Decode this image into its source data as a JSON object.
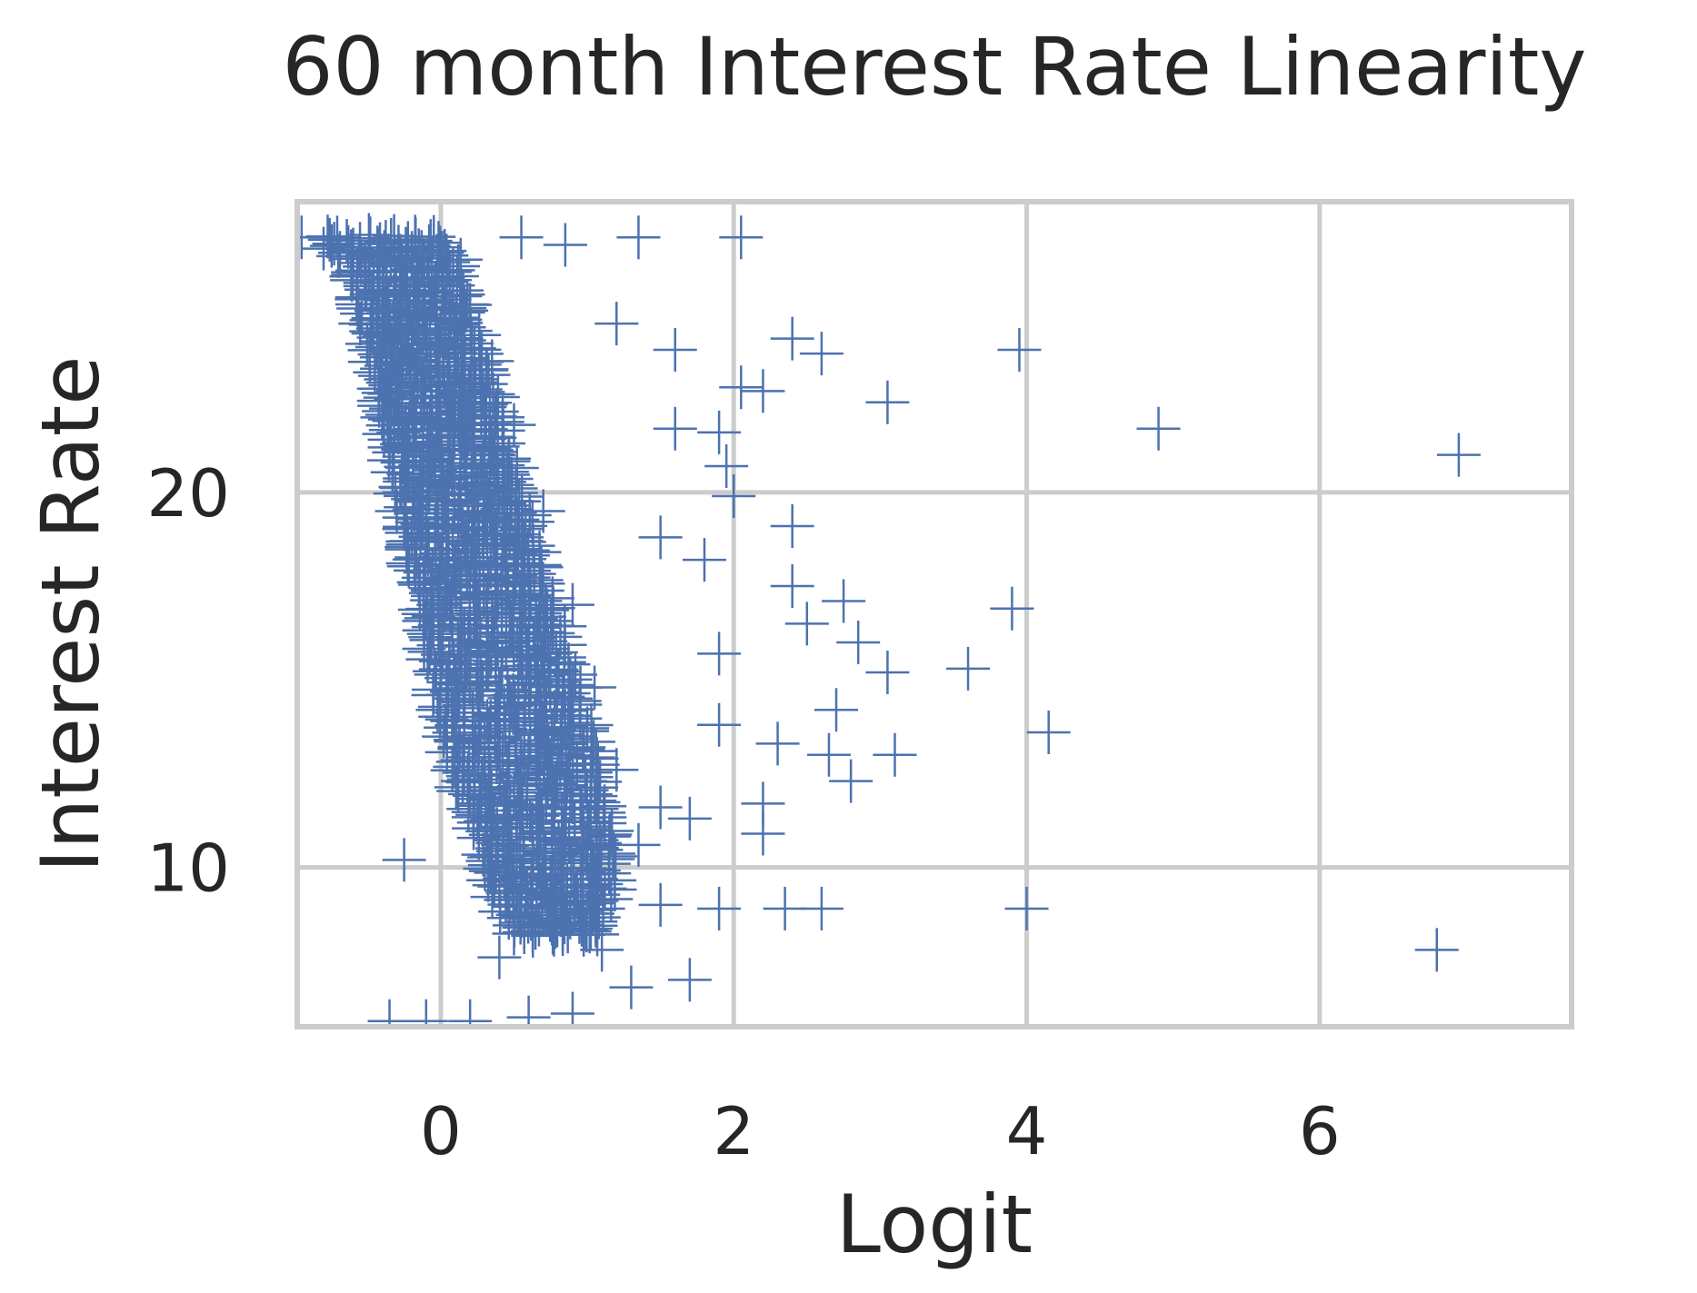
{
  "chart_data": {
    "type": "scatter",
    "title": "60 month Interest Rate Linearity",
    "xlabel": "Logit",
    "ylabel": "Interest Rate",
    "xlim": [
      -0.98,
      7.72
    ],
    "ylim": [
      5.75,
      27.75
    ],
    "xticks": [
      0,
      2,
      4,
      6
    ],
    "yticks": [
      10,
      20
    ],
    "grid": true,
    "marker": "+",
    "colors": {
      "marker": "#4c72b0",
      "grid": "#cccccc",
      "text": "#262626"
    },
    "series": [
      {
        "marker": "plus",
        "bulk_band_rows": [
          [
            26.8,
            -0.85,
            0.0
          ],
          [
            26.2,
            -0.65,
            0.15
          ],
          [
            25.5,
            -0.6,
            0.15
          ],
          [
            24.5,
            -0.55,
            0.25
          ],
          [
            23.5,
            -0.5,
            0.3
          ],
          [
            22.5,
            -0.45,
            0.4
          ],
          [
            21.5,
            -0.4,
            0.45
          ],
          [
            20.5,
            -0.35,
            0.55
          ],
          [
            19.5,
            -0.3,
            0.6
          ],
          [
            18.5,
            -0.25,
            0.7
          ],
          [
            17.5,
            -0.2,
            0.75
          ],
          [
            16.5,
            -0.15,
            0.85
          ],
          [
            15.5,
            -0.1,
            0.9
          ],
          [
            14.5,
            -0.05,
            1.0
          ],
          [
            13.5,
            0.0,
            1.05
          ],
          [
            12.5,
            0.05,
            1.1
          ],
          [
            11.5,
            0.15,
            1.15
          ],
          [
            10.5,
            0.25,
            1.2
          ],
          [
            9.5,
            0.3,
            1.2
          ],
          [
            8.8,
            0.4,
            1.15
          ],
          [
            8.2,
            0.5,
            1.1
          ]
        ],
        "points": [
          [
            -0.95,
            26.8
          ],
          [
            -0.8,
            26.5
          ],
          [
            -0.7,
            26.3
          ],
          [
            -0.6,
            25.8
          ],
          [
            -0.55,
            24.5
          ],
          [
            -0.45,
            23.2
          ],
          [
            -0.4,
            22.0
          ],
          [
            -0.35,
            21.2
          ],
          [
            -0.25,
            20.0
          ],
          [
            -0.3,
            19.5
          ],
          [
            -0.2,
            18.7
          ],
          [
            -0.15,
            17.6
          ],
          [
            -0.05,
            16.7
          ],
          [
            0.0,
            15.5
          ],
          [
            0.05,
            14.6
          ],
          [
            0.1,
            13.4
          ],
          [
            0.15,
            12.3
          ],
          [
            0.25,
            11.4
          ],
          [
            0.35,
            10.3
          ],
          [
            0.45,
            9.5
          ],
          [
            0.55,
            8.7
          ],
          [
            0.2,
            25.0
          ],
          [
            0.35,
            23.5
          ],
          [
            0.5,
            21.8
          ],
          [
            0.7,
            19.5
          ],
          [
            0.9,
            17.0
          ],
          [
            1.05,
            14.8
          ],
          [
            1.2,
            12.6
          ],
          [
            1.35,
            10.6
          ],
          [
            1.5,
            9.0
          ],
          [
            -0.35,
            5.9
          ],
          [
            -0.1,
            5.9
          ],
          [
            0.2,
            5.9
          ],
          [
            0.6,
            6.0
          ],
          [
            0.9,
            6.1
          ],
          [
            1.3,
            6.8
          ],
          [
            1.7,
            7.0
          ],
          [
            0.4,
            7.6
          ],
          [
            1.1,
            7.8
          ],
          [
            -0.25,
            10.2
          ],
          [
            0.55,
            26.8
          ],
          [
            0.85,
            26.6
          ],
          [
            1.35,
            26.8
          ],
          [
            2.05,
            26.8
          ],
          [
            1.2,
            24.5
          ],
          [
            1.6,
            23.8
          ],
          [
            2.4,
            24.1
          ],
          [
            2.6,
            23.7
          ],
          [
            3.05,
            22.4
          ],
          [
            3.95,
            23.8
          ],
          [
            4.9,
            21.7
          ],
          [
            6.95,
            21.0
          ],
          [
            1.6,
            21.7
          ],
          [
            1.9,
            21.6
          ],
          [
            2.05,
            22.8
          ],
          [
            2.2,
            22.7
          ],
          [
            2.0,
            19.9
          ],
          [
            1.95,
            20.7
          ],
          [
            2.4,
            19.1
          ],
          [
            1.5,
            18.8
          ],
          [
            1.8,
            18.2
          ],
          [
            2.4,
            17.5
          ],
          [
            2.75,
            17.1
          ],
          [
            2.5,
            16.5
          ],
          [
            2.85,
            16.0
          ],
          [
            3.05,
            15.2
          ],
          [
            3.6,
            15.3
          ],
          [
            3.9,
            16.9
          ],
          [
            1.9,
            15.7
          ],
          [
            2.7,
            14.2
          ],
          [
            1.9,
            13.8
          ],
          [
            2.3,
            13.3
          ],
          [
            2.65,
            13.0
          ],
          [
            3.1,
            13.0
          ],
          [
            4.15,
            13.6
          ],
          [
            2.8,
            12.3
          ],
          [
            2.2,
            11.7
          ],
          [
            1.7,
            11.3
          ],
          [
            2.2,
            10.9
          ],
          [
            1.9,
            8.9
          ],
          [
            2.35,
            8.9
          ],
          [
            2.6,
            8.9
          ],
          [
            4.0,
            8.9
          ],
          [
            6.8,
            7.8
          ],
          [
            1.5,
            11.6
          ]
        ]
      }
    ]
  }
}
